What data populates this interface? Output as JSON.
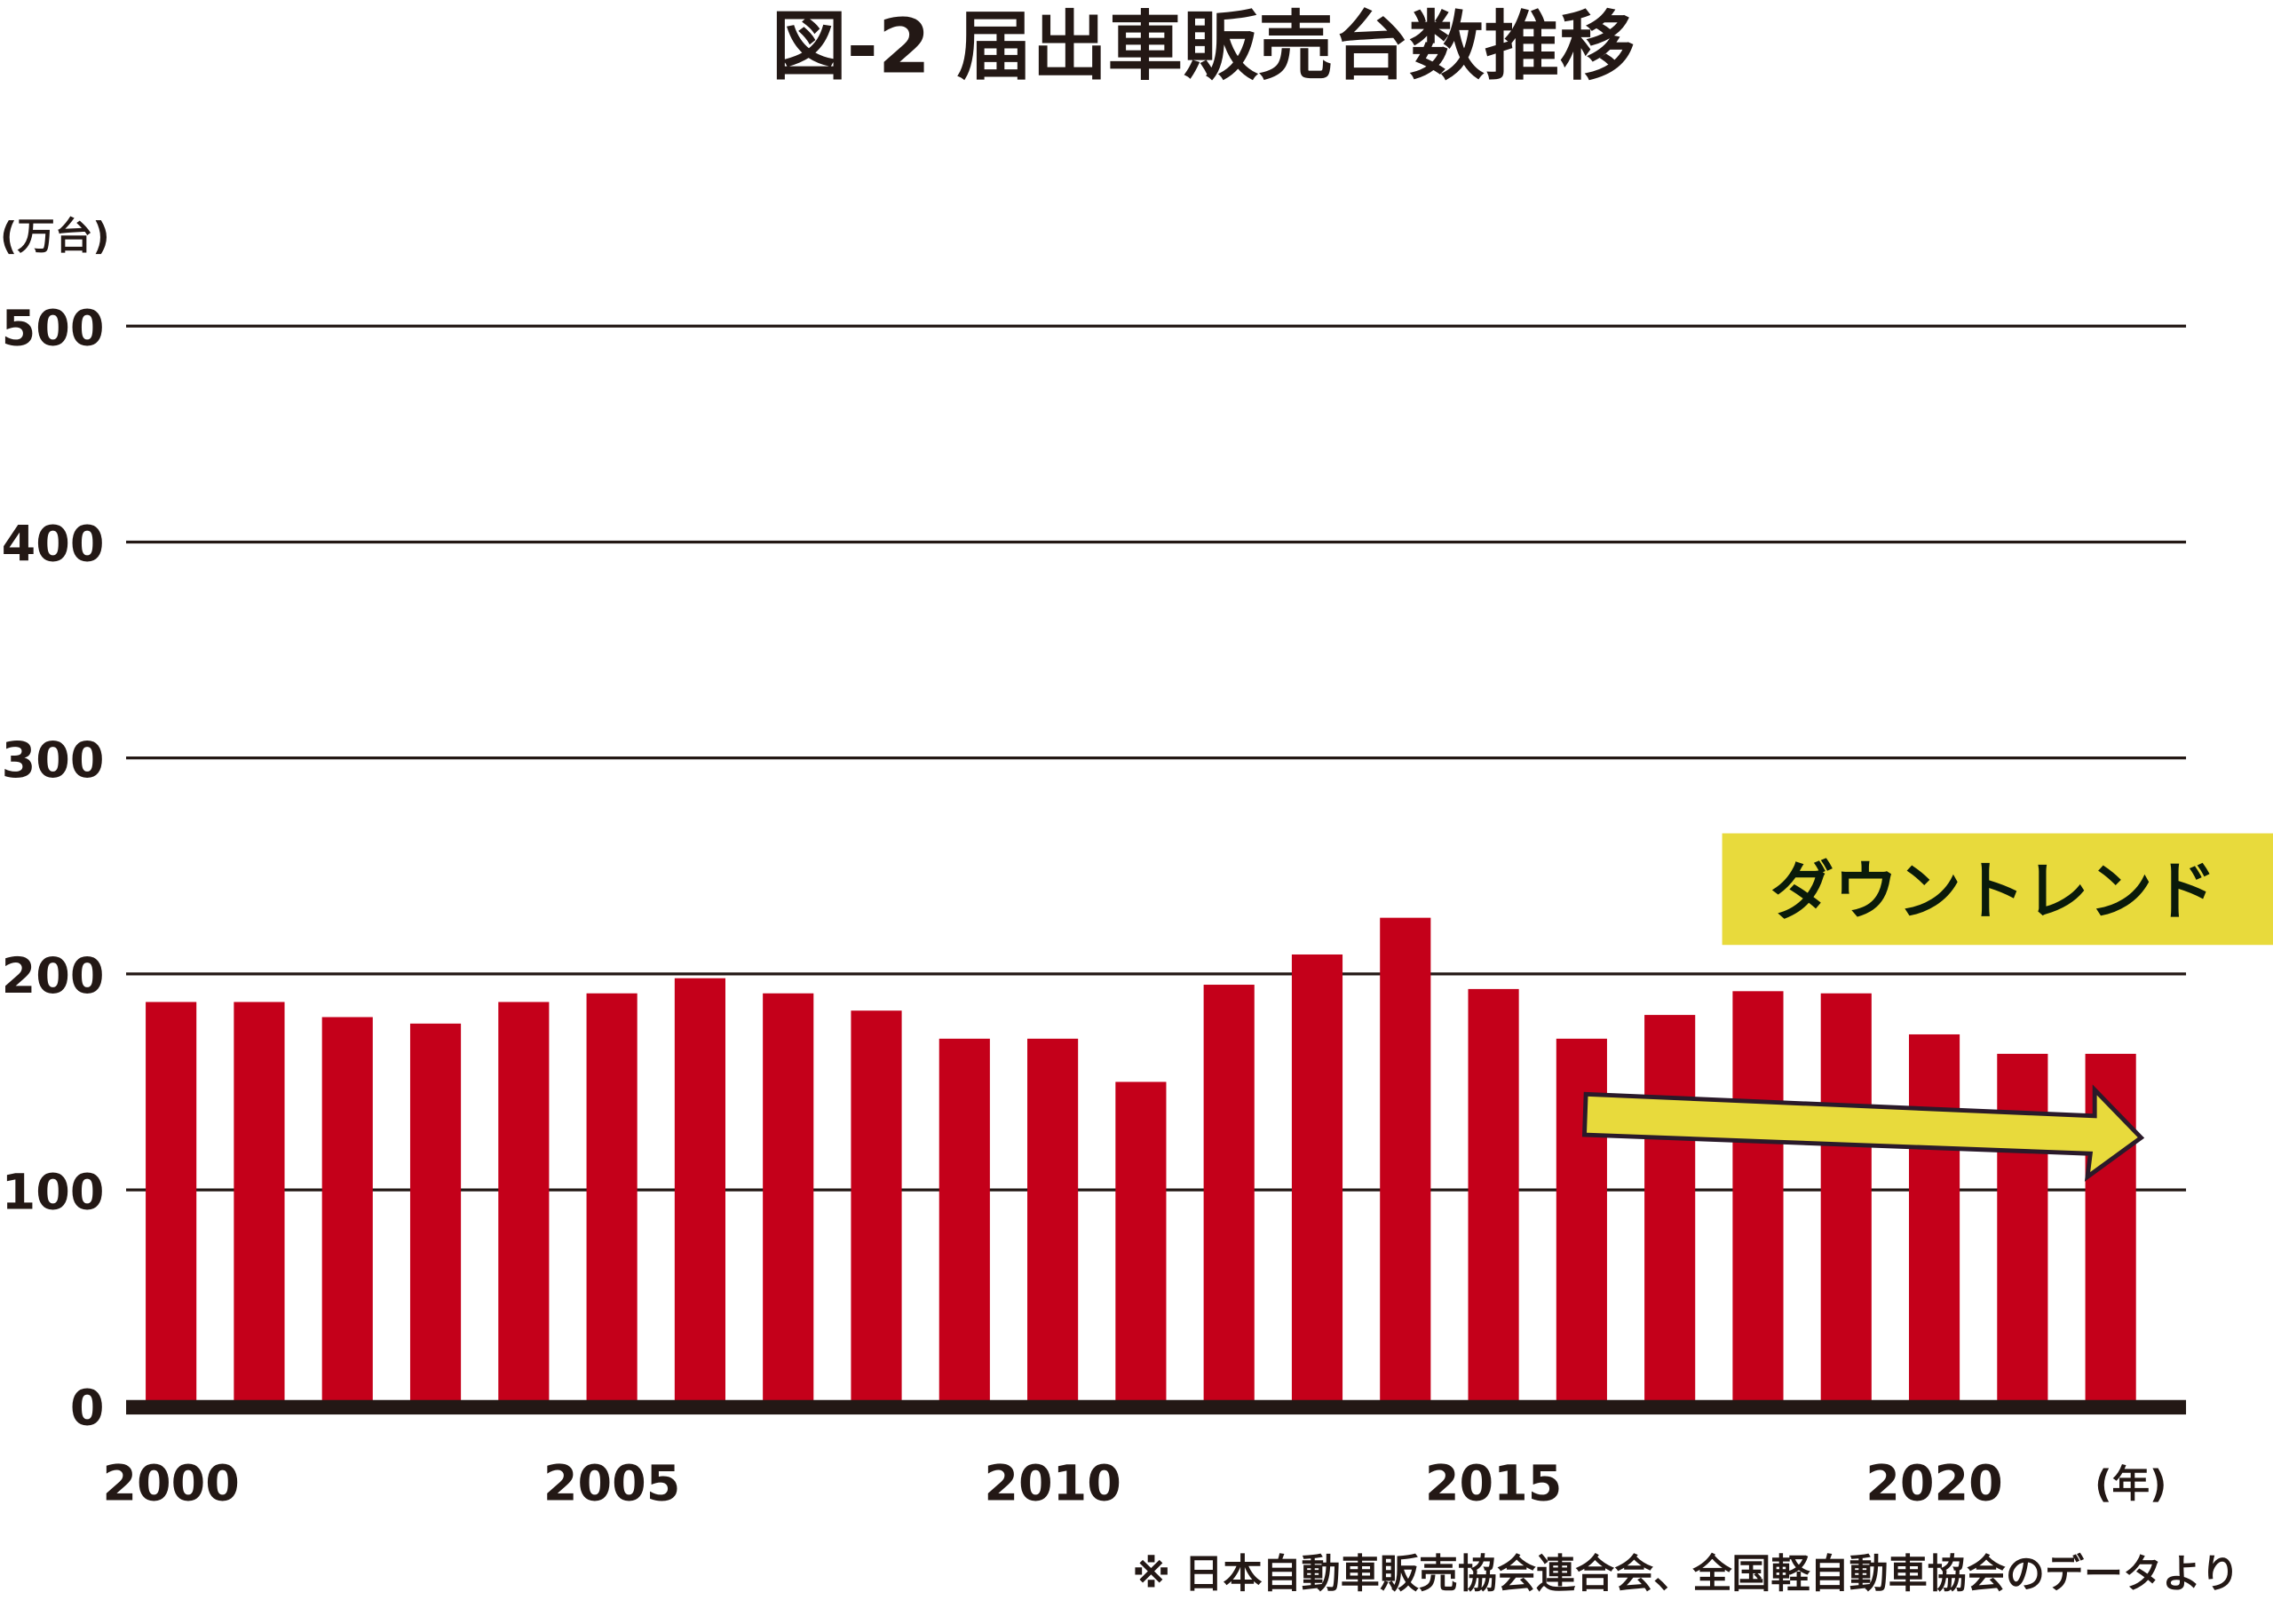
{
  "chart_data": {
    "type": "bar",
    "title": "図-2 届出車販売台数推移",
    "ylabel": "(万台)",
    "xlabel": "(年)",
    "ylim": [
      0,
      500
    ],
    "yticks": [
      0,
      100,
      200,
      300,
      400,
      500
    ],
    "xtick_labels": [
      "2000",
      "2005",
      "2010",
      "2015",
      "2020"
    ],
    "grid": true,
    "categories": [
      "2000",
      "2001",
      "2002",
      "2003",
      "2004",
      "2005",
      "2006",
      "2007",
      "2008",
      "2009",
      "2010",
      "2011",
      "2012",
      "2013",
      "2014",
      "2015",
      "2016",
      "2017",
      "2018",
      "2019",
      "2020",
      "2021",
      "2022"
    ],
    "values": [
      187,
      187,
      180,
      177,
      187,
      191,
      198,
      191,
      183,
      170,
      170,
      150,
      195,
      209,
      226,
      193,
      170,
      181,
      192,
      191,
      172,
      163,
      163
    ],
    "annotation": "ダウントレンド",
    "trend_arrow": {
      "from": "2016",
      "to": "2022"
    },
    "source_note": "※ 日本自動車販売協会連合会、全国軽自動車協会のデータより",
    "colors": {
      "bar": "#c4001a",
      "annotation": "#e8da3c",
      "axis": "#231815"
    }
  }
}
